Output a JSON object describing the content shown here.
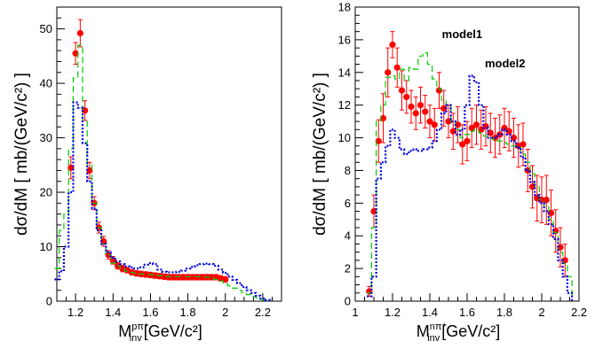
{
  "chart_data": [
    {
      "type": "line",
      "ylabel": "dσ/dM [ mb/(GeV/c²) ]",
      "xlabel_main": "M",
      "xlabel_sup": "pπ⁺",
      "xlabel_sub": "inv",
      "xlabel_unit": "[GeV/c²]",
      "xlim": [
        1.1,
        2.3
      ],
      "ylim": [
        0,
        54
      ],
      "xticks": [
        1.2,
        1.4,
        1.6,
        1.8,
        2.0,
        2.2
      ],
      "xtick_labels": [
        "1.2",
        "1.4",
        "1.6",
        "1.8",
        "2",
        "2.2"
      ],
      "yticks": [
        0,
        10,
        20,
        30,
        40,
        50
      ],
      "ytick_labels": [
        "0",
        "10",
        "20",
        "30",
        "40",
        "50"
      ],
      "annotations": [],
      "series": [
        {
          "style": "points",
          "color": "#ff0000",
          "x": [
            1.175,
            1.2,
            1.225,
            1.25,
            1.275,
            1.3,
            1.325,
            1.35,
            1.375,
            1.4,
            1.425,
            1.45,
            1.475,
            1.5,
            1.525,
            1.55,
            1.575,
            1.6,
            1.625,
            1.65,
            1.675,
            1.7,
            1.725,
            1.75,
            1.775,
            1.8,
            1.825,
            1.85,
            1.875,
            1.9,
            1.925,
            1.95,
            1.975,
            2.0
          ],
          "y": [
            24.5,
            45.5,
            49.2,
            35.0,
            24.0,
            18.0,
            13.5,
            11.0,
            8.5,
            7.5,
            6.5,
            6.0,
            5.7,
            5.3,
            5.1,
            5.0,
            4.9,
            4.8,
            4.7,
            4.6,
            4.5,
            4.4,
            4.4,
            4.4,
            4.4,
            4.4,
            4.4,
            4.4,
            4.4,
            4.4,
            4.4,
            4.4,
            4.2,
            4.0
          ],
          "err": [
            2.0,
            2.0,
            2.5,
            1.8,
            1.5,
            1.2,
            1.0,
            0.9,
            0.8,
            0.7,
            0.6,
            0.6,
            0.5,
            0.5,
            0.5,
            0.5,
            0.5,
            0.5,
            0.5,
            0.5,
            0.5,
            0.5,
            0.5,
            0.5,
            0.5,
            0.5,
            0.5,
            0.5,
            0.5,
            0.5,
            0.5,
            0.5,
            0.5,
            0.5
          ]
        },
        {
          "style": "dashed-step",
          "color": "#00cc00",
          "x": [
            1.1,
            1.125,
            1.15,
            1.175,
            1.2,
            1.225,
            1.25,
            1.275,
            1.3,
            1.325,
            1.35,
            1.375,
            1.4,
            1.425,
            1.45,
            1.475,
            1.5,
            1.525,
            1.55,
            1.575,
            1.6,
            1.625,
            1.65,
            1.675,
            1.7,
            1.725,
            1.75,
            1.775,
            1.8,
            1.825,
            1.85,
            1.875,
            1.9,
            1.925,
            1.95,
            1.975,
            2.0,
            2.025,
            2.05,
            2.075,
            2.1,
            2.125,
            2.15,
            2.175,
            2.2,
            2.225
          ],
          "y": [
            6.0,
            13.0,
            16.0,
            28.0,
            41.0,
            47.0,
            33.0,
            25.0,
            18.0,
            13.5,
            10.5,
            8.5,
            7.0,
            6.5,
            6.0,
            5.5,
            5.3,
            5.1,
            5.0,
            4.9,
            4.9,
            4.8,
            4.7,
            4.6,
            4.5,
            4.5,
            4.5,
            4.5,
            4.5,
            4.5,
            4.5,
            4.5,
            4.4,
            4.3,
            4.0,
            3.7,
            3.2,
            2.8,
            2.4,
            2.0,
            1.6,
            1.2,
            0.9,
            0.6,
            0.3,
            0.1
          ]
        },
        {
          "style": "dotted-step",
          "color": "#0000dd",
          "x": [
            1.1,
            1.125,
            1.15,
            1.175,
            1.2,
            1.225,
            1.25,
            1.275,
            1.3,
            1.325,
            1.35,
            1.375,
            1.4,
            1.425,
            1.45,
            1.475,
            1.5,
            1.525,
            1.55,
            1.575,
            1.6,
            1.625,
            1.65,
            1.675,
            1.7,
            1.725,
            1.75,
            1.775,
            1.8,
            1.825,
            1.85,
            1.875,
            1.9,
            1.925,
            1.95,
            1.975,
            2.0,
            2.025,
            2.05,
            2.075,
            2.1,
            2.125,
            2.15,
            2.175,
            2.2,
            2.225
          ],
          "y": [
            4.0,
            5.5,
            10.0,
            20.0,
            36.5,
            35.5,
            29.0,
            22.0,
            17.0,
            13.0,
            10.5,
            9.0,
            8.0,
            7.3,
            6.8,
            6.4,
            6.2,
            6.0,
            6.2,
            6.7,
            7.0,
            6.8,
            5.8,
            5.4,
            5.3,
            5.3,
            5.4,
            5.6,
            6.0,
            6.3,
            6.6,
            6.8,
            6.9,
            6.8,
            6.5,
            5.8,
            5.2,
            4.5,
            3.9,
            3.3,
            2.6,
            2.0,
            1.5,
            1.0,
            0.5,
            0.2
          ]
        }
      ]
    },
    {
      "type": "line",
      "ylabel": "dσ/dM [ mb/(GeV/c²) ]",
      "xlabel_main": "M",
      "xlabel_sup": "nπ⁺",
      "xlabel_sub": "inv",
      "xlabel_unit": "[GeV/c²]",
      "xlim": [
        1.0,
        2.2
      ],
      "ylim": [
        0,
        18
      ],
      "xticks": [
        1.0,
        1.2,
        1.4,
        1.6,
        1.8,
        2.0,
        2.2
      ],
      "xtick_labels": [
        "1",
        "1.2",
        "1.4",
        "1.6",
        "1.8",
        "2",
        "2.2"
      ],
      "yticks": [
        0,
        2,
        4,
        6,
        8,
        10,
        12,
        14,
        16,
        18
      ],
      "ytick_labels": [
        "0",
        "2",
        "4",
        "6",
        "8",
        "10",
        "12",
        "14",
        "16",
        "18"
      ],
      "annotations": [
        {
          "text": "model1",
          "x": 1.465,
          "y": 16.1
        },
        {
          "text": "model2",
          "x": 1.695,
          "y": 14.3
        }
      ],
      "series": [
        {
          "style": "points",
          "color": "#ff0000",
          "x": [
            1.075,
            1.1,
            1.125,
            1.15,
            1.175,
            1.2,
            1.225,
            1.25,
            1.275,
            1.3,
            1.325,
            1.35,
            1.375,
            1.4,
            1.425,
            1.45,
            1.475,
            1.5,
            1.525,
            1.55,
            1.575,
            1.6,
            1.625,
            1.65,
            1.675,
            1.7,
            1.725,
            1.75,
            1.775,
            1.8,
            1.825,
            1.85,
            1.875,
            1.9,
            1.925,
            1.95,
            1.975,
            2.0,
            2.025,
            2.05,
            2.075,
            2.1,
            2.125
          ],
          "y": [
            0.6,
            5.5,
            9.8,
            11.2,
            14.0,
            15.7,
            14.3,
            12.9,
            12.5,
            11.9,
            11.5,
            12.0,
            11.6,
            11.0,
            10.8,
            12.9,
            11.8,
            11.0,
            10.4,
            10.8,
            9.6,
            9.8,
            10.6,
            10.8,
            10.5,
            10.7,
            10.3,
            10.0,
            10.2,
            10.6,
            10.4,
            10.0,
            9.5,
            9.6,
            8.0,
            7.0,
            6.3,
            6.2,
            6.2,
            5.4,
            4.3,
            3.3,
            2.5
          ],
          "err": [
            0.3,
            1.0,
            1.3,
            1.5,
            1.5,
            0.8,
            1.2,
            1.2,
            1.0,
            1.0,
            1.0,
            1.1,
            1.0,
            1.0,
            1.0,
            1.1,
            1.1,
            1.0,
            1.1,
            1.1,
            1.2,
            1.2,
            1.2,
            1.2,
            1.2,
            1.2,
            1.2,
            1.2,
            1.2,
            1.2,
            1.2,
            1.2,
            1.3,
            1.3,
            1.3,
            1.3,
            1.4,
            1.4,
            1.5,
            1.4,
            1.3,
            1.2,
            1.0
          ]
        },
        {
          "style": "dashed-step",
          "color": "#00cc00",
          "x": [
            1.075,
            1.1,
            1.125,
            1.15,
            1.175,
            1.2,
            1.225,
            1.25,
            1.275,
            1.3,
            1.325,
            1.35,
            1.375,
            1.4,
            1.425,
            1.45,
            1.475,
            1.5,
            1.525,
            1.55,
            1.575,
            1.6,
            1.625,
            1.65,
            1.675,
            1.7,
            1.725,
            1.75,
            1.775,
            1.8,
            1.825,
            1.85,
            1.875,
            1.9,
            1.925,
            1.95,
            1.975,
            2.0,
            2.025,
            2.05,
            2.075,
            2.1,
            2.125,
            2.15
          ],
          "y": [
            0.5,
            4.5,
            11.0,
            12.0,
            13.7,
            13.8,
            13.6,
            14.2,
            13.5,
            14.3,
            14.2,
            15.0,
            15.2,
            14.5,
            13.6,
            13.0,
            12.3,
            12.0,
            11.0,
            10.5,
            10.0,
            10.2,
            10.4,
            10.5,
            10.3,
            10.1,
            10.0,
            9.9,
            9.8,
            9.7,
            9.6,
            9.5,
            9.5,
            9.0,
            8.5,
            7.8,
            7.0,
            6.2,
            5.8,
            5.0,
            4.2,
            3.0,
            2.3,
            1.5
          ]
        },
        {
          "style": "dotted-step",
          "color": "#0000dd",
          "x": [
            1.075,
            1.1,
            1.125,
            1.15,
            1.175,
            1.2,
            1.225,
            1.25,
            1.275,
            1.3,
            1.325,
            1.35,
            1.375,
            1.4,
            1.425,
            1.45,
            1.475,
            1.5,
            1.525,
            1.55,
            1.575,
            1.6,
            1.625,
            1.65,
            1.675,
            1.7,
            1.725,
            1.75,
            1.775,
            1.8,
            1.825,
            1.85,
            1.875,
            1.9,
            1.925,
            1.95,
            1.975,
            2.0,
            2.025,
            2.05,
            2.075,
            2.1,
            2.125,
            2.15
          ],
          "y": [
            0.3,
            1.5,
            7.5,
            8.5,
            9.5,
            10.5,
            10.0,
            9.3,
            9.0,
            9.2,
            9.3,
            9.2,
            9.3,
            9.4,
            9.8,
            10.5,
            11.5,
            12.0,
            11.0,
            10.2,
            10.5,
            12.0,
            13.8,
            13.4,
            12.0,
            10.6,
            10.0,
            10.0,
            10.2,
            10.5,
            10.2,
            9.8,
            9.4,
            8.8,
            8.0,
            7.3,
            6.5,
            6.0,
            5.5,
            4.7,
            3.8,
            2.5,
            1.5,
            0.5
          ]
        }
      ]
    }
  ]
}
